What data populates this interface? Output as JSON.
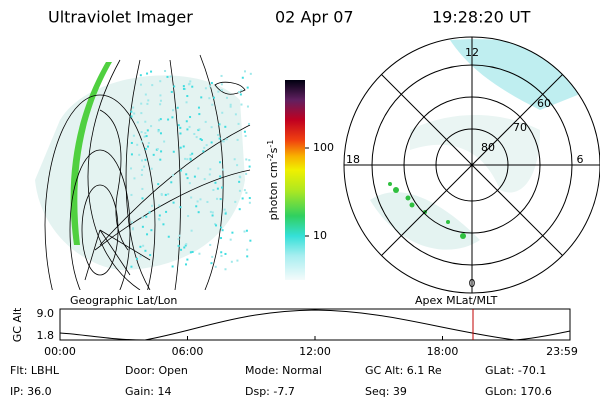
{
  "header": {
    "title": "Ultraviolet Imager",
    "date": "02 Apr 07",
    "time": "19:28:20 UT"
  },
  "colorbar": {
    "label": "photon cm",
    "exp1": "-2",
    "mid": "s",
    "exp2": "-1",
    "ticks": [
      "100",
      "10"
    ]
  },
  "polar": {
    "labels": {
      "top": "12",
      "right": "6",
      "left": "18",
      "bottom": "0"
    },
    "rings": [
      "60",
      "70",
      "80"
    ]
  },
  "panels": {
    "left_caption": "Geographic Lat/Lon",
    "right_caption": "Apex MLat/MLT"
  },
  "altitude_plot": {
    "axis_label": "GC Alt",
    "yticks": [
      "9.0",
      "1.8"
    ],
    "xticks": [
      "00:00",
      "06:00",
      "12:00",
      "18:00",
      "23:59"
    ]
  },
  "info": {
    "rows": [
      [
        "Flt: LBHL",
        "Door: Open",
        "Mode: Normal",
        "GC Alt: 6.1 Re",
        "GLat: -70.1"
      ],
      [
        "IP: 36.0",
        "Gain: 14",
        "Dsp:  -7.7",
        "Seq: 39",
        "GLon: 170.6"
      ]
    ]
  }
}
